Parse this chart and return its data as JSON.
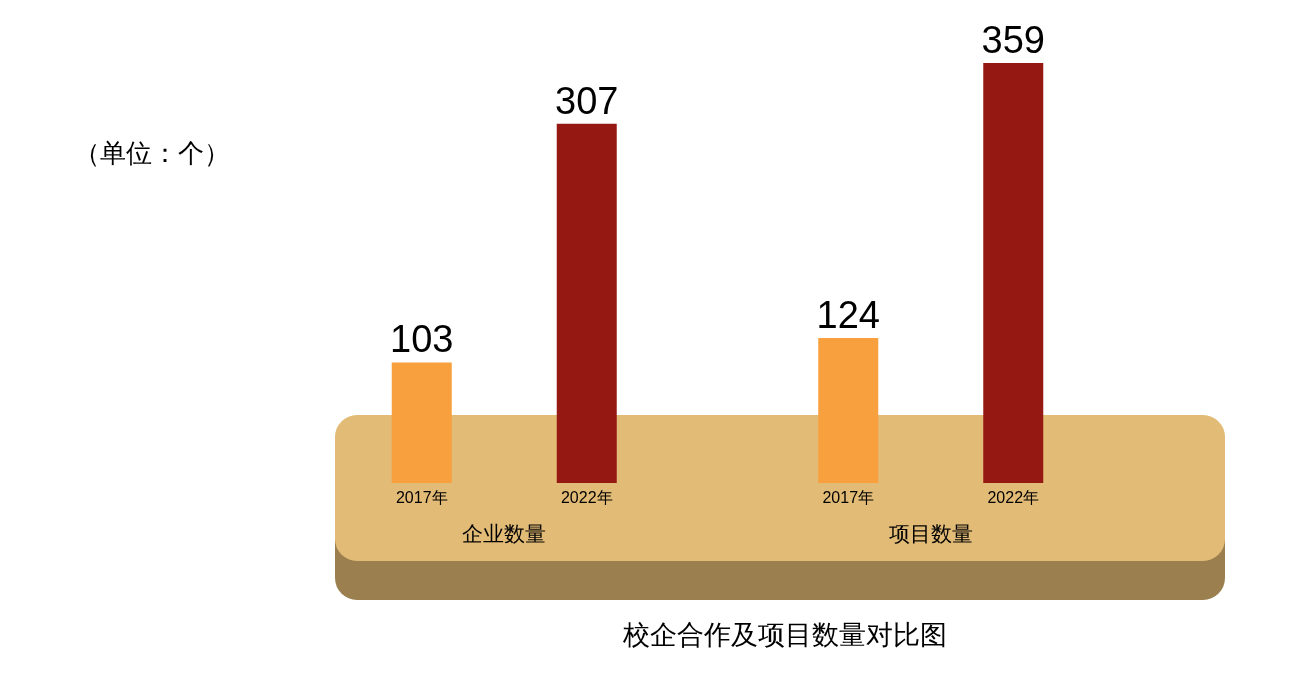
{
  "chart_data": {
    "type": "bar",
    "title": "校企合作及项目数量对比图",
    "annotations": [
      "（单位：个）"
    ],
    "categories": [
      "企业数量",
      "项目数量"
    ],
    "series": [
      {
        "name": "2017年",
        "color": "#f8a03e",
        "values": [
          103,
          124
        ]
      },
      {
        "name": "2022年",
        "color": "#961812",
        "values": [
          307,
          359
        ]
      }
    ],
    "data_labels": true
  }
}
